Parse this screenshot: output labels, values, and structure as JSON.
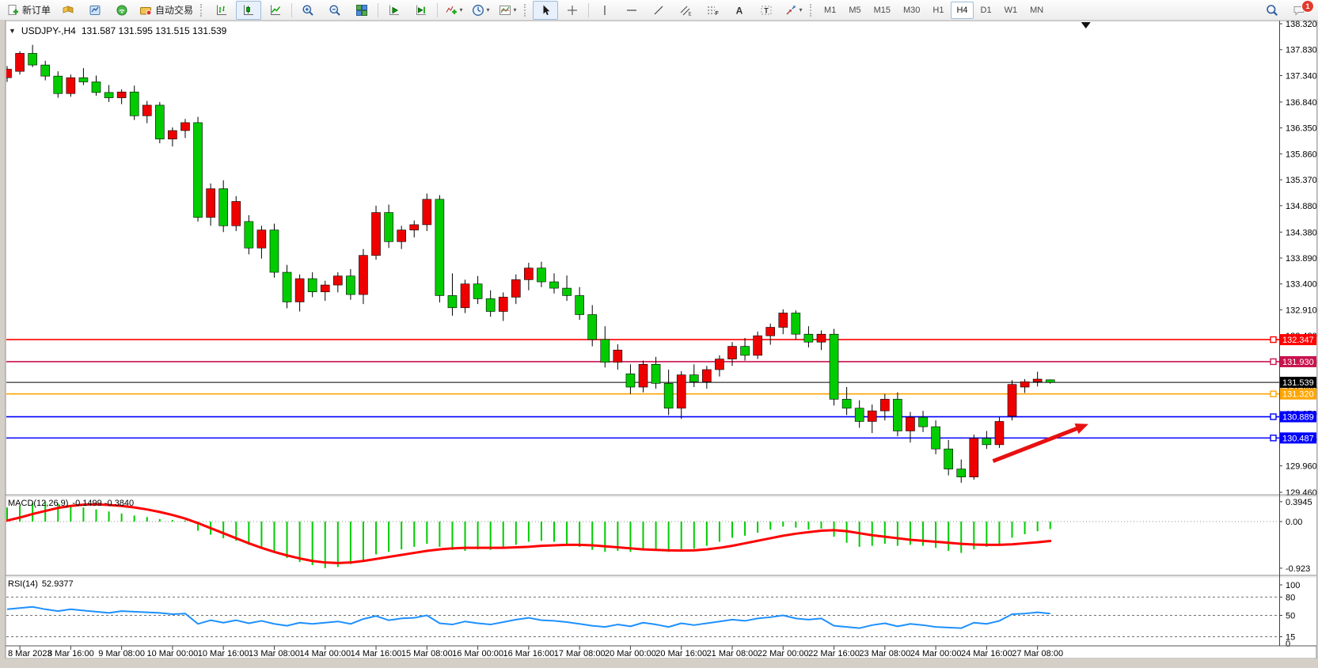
{
  "toolbar": {
    "new_order_label": "新订单",
    "auto_trading_label": "自动交易",
    "groups": [
      {
        "items": [
          {
            "name": "new-order-button",
            "icon": "new-order",
            "label_key": "new_order_label",
            "label": "新订单"
          },
          {
            "name": "market-watch-button",
            "icon": "market-watch"
          },
          {
            "name": "navigator-button",
            "icon": "navigator"
          },
          {
            "name": "signals-button",
            "icon": "signals"
          },
          {
            "name": "auto-trading-button",
            "icon": "autotrade",
            "label_key": "auto_trading_label",
            "label": "自动交易"
          }
        ]
      },
      {
        "items": [
          {
            "name": "bar-chart-button",
            "icon": "bars-chart"
          },
          {
            "name": "candlestick-chart-button",
            "icon": "candles-chart",
            "active": true
          },
          {
            "name": "line-chart-button",
            "icon": "line-chart"
          }
        ]
      },
      {
        "items": [
          {
            "name": "zoom-in-button",
            "icon": "zoom-in"
          },
          {
            "name": "zoom-out-button",
            "icon": "zoom-out"
          },
          {
            "name": "tile-windows-button",
            "icon": "tile-windows"
          }
        ]
      },
      {
        "items": [
          {
            "name": "auto-scroll-button",
            "icon": "autoscroll"
          },
          {
            "name": "chart-shift-button",
            "icon": "chart-shift"
          }
        ]
      },
      {
        "items": [
          {
            "name": "indicators-list-button",
            "icon": "indicators-add",
            "caret": true
          },
          {
            "name": "periods-button",
            "icon": "periods",
            "caret": true
          },
          {
            "name": "templates-button",
            "icon": "templates",
            "caret": true
          }
        ]
      },
      {
        "items": [
          {
            "name": "cursor-button",
            "icon": "cursor",
            "active": true
          },
          {
            "name": "crosshair-button",
            "icon": "crosshair"
          }
        ]
      },
      {
        "items": [
          {
            "name": "vertical-line-button",
            "icon": "vline"
          },
          {
            "name": "horizontal-line-button",
            "icon": "hline"
          },
          {
            "name": "trendline-button",
            "icon": "trendline"
          },
          {
            "name": "equidistant-channel-button",
            "icon": "channel"
          },
          {
            "name": "fibonacci-button",
            "icon": "fibo"
          },
          {
            "name": "text-button",
            "icon": "text"
          },
          {
            "name": "text-label-button",
            "icon": "label"
          },
          {
            "name": "arrows-button",
            "icon": "shapes",
            "caret": true
          }
        ]
      }
    ],
    "timeframes": [
      "M1",
      "M5",
      "M15",
      "M30",
      "H1",
      "H4",
      "D1",
      "W1",
      "MN"
    ],
    "active_timeframe": "H4",
    "notification_badge": "1"
  },
  "chart_window": {
    "title": "USDJPY-,H4",
    "quote": "131.587 131.595 131.515 131.539"
  },
  "indicators": {
    "macd": {
      "title": "MACD(12,26,9)",
      "values": "-0.1499 -0.3840"
    },
    "rsi": {
      "title": "RSI(14)",
      "value": "52.9377"
    }
  },
  "colors": {
    "bull_candle": "#EE0000",
    "bear_candle": "#00CC00",
    "wick": "#000000",
    "macd_histogram": "#00CC00",
    "macd_signal": "#FF0000",
    "rsi_line": "#1E90FF",
    "arrow": "#E81010",
    "current_price": "#000000"
  },
  "chart_data": [
    {
      "type": "candlestick",
      "symbol": "USDJPY-",
      "timeframe": "H4",
      "ohlc_current": {
        "open": 131.587,
        "high": 131.595,
        "low": 131.515,
        "close": 131.539
      },
      "ylim": [
        129.43,
        138.35
      ],
      "y_ticks": [
        "138.320",
        "137.830",
        "137.340",
        "136.840",
        "136.350",
        "135.860",
        "135.370",
        "134.880",
        "134.380",
        "133.890",
        "133.400",
        "132.910",
        "132.420",
        "131.930",
        "131.440",
        "130.950",
        "130.460",
        "129.960",
        "129.460"
      ],
      "x_labels": [
        "8 Mar 2023",
        "8 Mar 16:00",
        "9 Mar 08:00",
        "10 Mar 00:00",
        "10 Mar 16:00",
        "13 Mar 08:00",
        "14 Mar 00:00",
        "14 Mar 16:00",
        "15 Mar 08:00",
        "16 Mar 00:00",
        "16 Mar 16:00",
        "17 Mar 08:00",
        "20 Mar 00:00",
        "20 Mar 16:00",
        "21 Mar 08:00",
        "22 Mar 00:00",
        "22 Mar 16:00",
        "23 Mar 08:00",
        "24 Mar 00:00",
        "24 Mar 16:00",
        "27 Mar 08:00"
      ],
      "x_label_candle_indices": [
        1,
        5,
        9,
        13,
        17,
        21,
        25,
        29,
        33,
        37,
        41,
        45,
        49,
        53,
        57,
        61,
        65,
        69,
        73,
        77,
        81
      ],
      "candles": [
        [
          137.3,
          137.52,
          137.22,
          137.46
        ],
        [
          137.42,
          137.8,
          137.36,
          137.76
        ],
        [
          137.76,
          137.92,
          137.5,
          137.54
        ],
        [
          137.54,
          137.62,
          137.25,
          137.33
        ],
        [
          137.33,
          137.42,
          136.92,
          137.0
        ],
        [
          137.0,
          137.36,
          136.94,
          137.3
        ],
        [
          137.3,
          137.48,
          137.16,
          137.22
        ],
        [
          137.22,
          137.34,
          136.96,
          137.02
        ],
        [
          137.02,
          137.16,
          136.84,
          136.92
        ],
        [
          136.92,
          137.08,
          136.8,
          137.03
        ],
        [
          137.03,
          137.15,
          136.5,
          136.58
        ],
        [
          136.58,
          136.86,
          136.44,
          136.78
        ],
        [
          136.78,
          136.84,
          136.06,
          136.14
        ],
        [
          136.14,
          136.36,
          136.0,
          136.3
        ],
        [
          136.3,
          136.52,
          136.16,
          136.45
        ],
        [
          136.45,
          136.56,
          134.58,
          134.66
        ],
        [
          134.66,
          135.3,
          134.5,
          135.2
        ],
        [
          135.2,
          135.36,
          134.38,
          134.5
        ],
        [
          134.5,
          135.06,
          134.4,
          134.96
        ],
        [
          134.58,
          134.7,
          133.96,
          134.08
        ],
        [
          134.08,
          134.5,
          133.88,
          134.42
        ],
        [
          134.42,
          134.54,
          133.52,
          133.62
        ],
        [
          133.62,
          133.76,
          132.94,
          133.06
        ],
        [
          133.06,
          133.58,
          132.88,
          133.5
        ],
        [
          133.5,
          133.62,
          133.15,
          133.25
        ],
        [
          133.25,
          133.46,
          133.08,
          133.38
        ],
        [
          133.38,
          133.62,
          133.24,
          133.55
        ],
        [
          133.55,
          133.68,
          133.1,
          133.2
        ],
        [
          133.2,
          134.06,
          133.02,
          133.94
        ],
        [
          133.94,
          134.88,
          133.86,
          134.75
        ],
        [
          134.75,
          134.9,
          134.08,
          134.2
        ],
        [
          134.2,
          134.5,
          134.06,
          134.42
        ],
        [
          134.42,
          134.6,
          134.28,
          134.52
        ],
        [
          134.52,
          135.11,
          134.4,
          135.0
        ],
        [
          135.0,
          135.08,
          133.05,
          133.18
        ],
        [
          133.18,
          133.6,
          132.8,
          132.95
        ],
        [
          132.95,
          133.48,
          132.85,
          133.4
        ],
        [
          133.4,
          133.55,
          133.02,
          133.12
        ],
        [
          133.12,
          133.28,
          132.78,
          132.88
        ],
        [
          132.88,
          133.24,
          132.7,
          133.15
        ],
        [
          133.15,
          133.58,
          133.02,
          133.48
        ],
        [
          133.48,
          133.8,
          133.28,
          133.7
        ],
        [
          133.7,
          133.82,
          133.34,
          133.44
        ],
        [
          133.44,
          133.6,
          133.22,
          133.32
        ],
        [
          133.32,
          133.56,
          133.08,
          133.18
        ],
        [
          133.18,
          133.34,
          132.72,
          132.82
        ],
        [
          132.82,
          133.0,
          132.22,
          132.35
        ],
        [
          132.35,
          132.6,
          131.82,
          131.92
        ],
        [
          131.92,
          132.26,
          131.78,
          132.15
        ],
        [
          131.7,
          131.88,
          131.32,
          131.45
        ],
        [
          131.45,
          131.95,
          131.35,
          131.88
        ],
        [
          131.88,
          132.02,
          131.42,
          131.52
        ],
        [
          131.52,
          131.78,
          130.92,
          131.05
        ],
        [
          131.05,
          131.75,
          130.85,
          131.68
        ],
        [
          131.68,
          131.88,
          131.45,
          131.55
        ],
        [
          131.55,
          131.85,
          131.42,
          131.78
        ],
        [
          131.78,
          132.05,
          131.65,
          131.98
        ],
        [
          131.98,
          132.3,
          131.85,
          132.22
        ],
        [
          132.22,
          132.38,
          131.95,
          132.05
        ],
        [
          132.05,
          132.5,
          131.98,
          132.42
        ],
        [
          132.42,
          132.65,
          132.25,
          132.58
        ],
        [
          132.58,
          132.92,
          132.45,
          132.85
        ],
        [
          132.85,
          132.9,
          132.35,
          132.45
        ],
        [
          132.45,
          132.6,
          132.2,
          132.3
        ],
        [
          132.3,
          132.52,
          132.15,
          132.45
        ],
        [
          132.45,
          132.55,
          131.1,
          131.22
        ],
        [
          131.22,
          131.45,
          130.92,
          131.05
        ],
        [
          131.05,
          131.2,
          130.68,
          130.8
        ],
        [
          130.8,
          131.12,
          130.58,
          131.0
        ],
        [
          131.0,
          131.32,
          130.82,
          131.22
        ],
        [
          131.22,
          131.35,
          130.52,
          130.62
        ],
        [
          130.62,
          130.98,
          130.4,
          130.88
        ],
        [
          130.88,
          131.0,
          130.6,
          130.7
        ],
        [
          130.7,
          130.82,
          130.18,
          130.28
        ],
        [
          130.28,
          130.45,
          129.78,
          129.9
        ],
        [
          129.9,
          130.08,
          129.64,
          129.75
        ],
        [
          129.75,
          130.55,
          129.7,
          130.48
        ],
        [
          130.48,
          130.62,
          130.28,
          130.36
        ],
        [
          130.36,
          130.88,
          130.3,
          130.8
        ],
        [
          130.9,
          131.58,
          130.82,
          131.5
        ],
        [
          131.45,
          131.6,
          131.34,
          131.55
        ],
        [
          131.55,
          131.74,
          131.46,
          131.6
        ],
        [
          131.587,
          131.595,
          131.515,
          131.539
        ]
      ],
      "horizontal_lines": [
        {
          "price": 132.347,
          "label": "132.347",
          "color": "#FF0000"
        },
        {
          "price": 131.93,
          "label": "131.930",
          "color": "#C9134E"
        },
        {
          "price": 131.32,
          "label": "131.320",
          "color": "#FFA500"
        },
        {
          "price": 130.889,
          "label": "130.889",
          "color": "#0000FF"
        },
        {
          "price": 130.487,
          "label": "130.487",
          "color": "#0000FF"
        }
      ],
      "current_price_line": {
        "price": 131.539,
        "label": "131.539",
        "color": "#000000"
      },
      "trend_arrow": {
        "from_candle": 77.5,
        "from_price": 130.05,
        "to_candle": 85.0,
        "to_price": 130.75,
        "color": "#E81010"
      },
      "shift_marker_at_candle": 84.8
    },
    {
      "type": "bar",
      "name": "MACD",
      "params": "12,26,9",
      "current_macd": -0.1499,
      "current_signal": -0.384,
      "ylim": [
        -1.02,
        0.52
      ],
      "y_ticks": [
        "0.3945",
        "0.00",
        "-0.923"
      ],
      "main": [
        0.28,
        0.32,
        0.37,
        0.3945,
        0.36,
        0.33,
        0.28,
        0.24,
        0.2,
        0.16,
        0.12,
        0.09,
        0.05,
        0.03,
        0.02,
        -0.18,
        -0.26,
        -0.33,
        -0.38,
        -0.46,
        -0.52,
        -0.62,
        -0.72,
        -0.8,
        -0.86,
        -0.923,
        -0.9,
        -0.84,
        -0.76,
        -0.65,
        -0.6,
        -0.55,
        -0.5,
        -0.44,
        -0.5,
        -0.56,
        -0.58,
        -0.55,
        -0.56,
        -0.52,
        -0.46,
        -0.4,
        -0.38,
        -0.4,
        -0.44,
        -0.5,
        -0.56,
        -0.6,
        -0.58,
        -0.6,
        -0.56,
        -0.56,
        -0.6,
        -0.56,
        -0.54,
        -0.48,
        -0.4,
        -0.32,
        -0.28,
        -0.22,
        -0.16,
        -0.1,
        -0.12,
        -0.16,
        -0.14,
        -0.3,
        -0.42,
        -0.5,
        -0.48,
        -0.44,
        -0.48,
        -0.46,
        -0.48,
        -0.52,
        -0.58,
        -0.62,
        -0.55,
        -0.5,
        -0.45,
        -0.32,
        -0.25,
        -0.19,
        -0.1499
      ],
      "signal": [
        0.02,
        0.08,
        0.15,
        0.21,
        0.27,
        0.31,
        0.335,
        0.34,
        0.33,
        0.31,
        0.28,
        0.24,
        0.19,
        0.13,
        0.06,
        -0.03,
        -0.13,
        -0.23,
        -0.33,
        -0.43,
        -0.52,
        -0.6,
        -0.67,
        -0.73,
        -0.78,
        -0.81,
        -0.82,
        -0.81,
        -0.78,
        -0.74,
        -0.7,
        -0.66,
        -0.62,
        -0.58,
        -0.55,
        -0.53,
        -0.52,
        -0.52,
        -0.52,
        -0.52,
        -0.51,
        -0.5,
        -0.48,
        -0.47,
        -0.46,
        -0.46,
        -0.47,
        -0.49,
        -0.51,
        -0.53,
        -0.55,
        -0.56,
        -0.57,
        -0.575,
        -0.57,
        -0.55,
        -0.52,
        -0.48,
        -0.43,
        -0.38,
        -0.33,
        -0.28,
        -0.24,
        -0.21,
        -0.18,
        -0.17,
        -0.19,
        -0.23,
        -0.27,
        -0.3,
        -0.33,
        -0.36,
        -0.38,
        -0.4,
        -0.42,
        -0.44,
        -0.455,
        -0.46,
        -0.46,
        -0.45,
        -0.43,
        -0.41,
        -0.384
      ]
    },
    {
      "type": "line",
      "name": "RSI",
      "params": "14",
      "current": 52.9377,
      "ylim": [
        0,
        100
      ],
      "y_ticks": [
        "100",
        "80",
        "50",
        "15",
        "0"
      ],
      "levels": [
        80,
        50,
        15
      ],
      "values": [
        60,
        62,
        64,
        60,
        57,
        60,
        58,
        56,
        54,
        57,
        56,
        55,
        54,
        52,
        53,
        36,
        42,
        38,
        42,
        37,
        41,
        36,
        33,
        38,
        36,
        38,
        40,
        36,
        44,
        49,
        42,
        45,
        46,
        50,
        37,
        35,
        40,
        37,
        35,
        39,
        43,
        46,
        42,
        41,
        39,
        36,
        33,
        31,
        35,
        32,
        38,
        35,
        31,
        37,
        34,
        37,
        40,
        43,
        41,
        45,
        47,
        50,
        45,
        43,
        45,
        33,
        31,
        29,
        34,
        37,
        32,
        36,
        34,
        31,
        30,
        29,
        38,
        36,
        41,
        52,
        53,
        55,
        52.94
      ]
    }
  ]
}
